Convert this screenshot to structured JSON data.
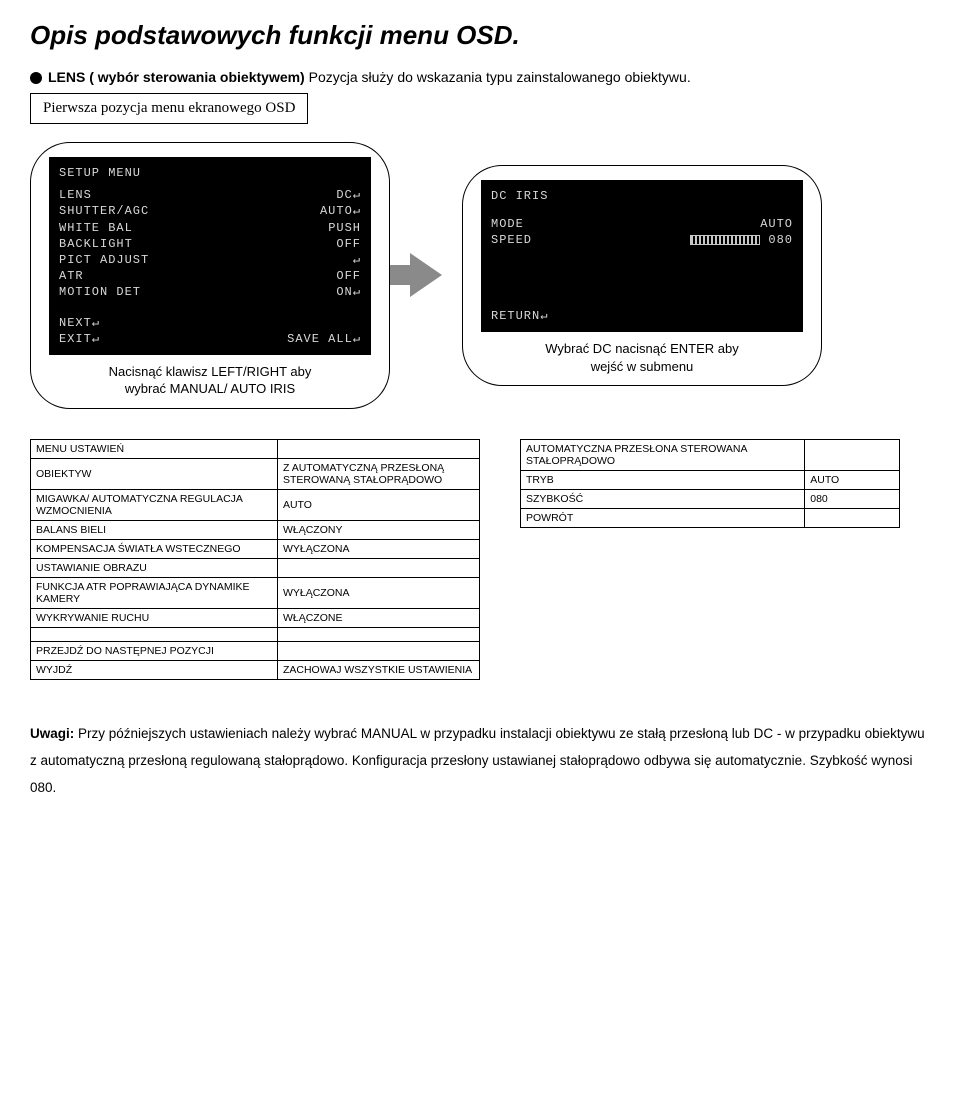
{
  "title": "Opis podstawowych funkcji menu OSD.",
  "bullet": {
    "strong": "LENS ( wybór sterowania obiektywem)",
    "rest": " Pozycja służy do wskazania typu zainstalowanego obiektywu."
  },
  "subtitle_box": "Pierwsza pozycja menu ekranowego OSD",
  "osd_left": {
    "title": "SETUP MENU",
    "rows": [
      [
        "LENS",
        "DC↵"
      ],
      [
        "SHUTTER/AGC",
        "AUTO↵"
      ],
      [
        "WHITE BAL",
        "PUSH"
      ],
      [
        "BACKLIGHT",
        "OFF"
      ],
      [
        "PICT ADJUST",
        "↵"
      ],
      [
        "ATR",
        "OFF"
      ],
      [
        "MOTION DET",
        "ON↵"
      ]
    ],
    "footer": [
      [
        "NEXT↵",
        ""
      ],
      [
        "EXIT↵",
        "SAVE ALL↵"
      ]
    ],
    "caption_l1": "Nacisnąć klawisz LEFT/RIGHT aby",
    "caption_l2": "wybrać MANUAL/ AUTO IRIS"
  },
  "osd_right": {
    "title": "DC IRIS",
    "rows": [
      [
        "MODE",
        "AUTO"
      ],
      [
        "SPEED",
        "__SLIDER__ 080"
      ]
    ],
    "footer": [
      [
        "RETURN↵",
        ""
      ]
    ],
    "caption_l1": "Wybrać DC nacisnąć ENTER aby",
    "caption_l2": "wejść w submenu"
  },
  "table_left": {
    "header": [
      "MENU USTAWIEŃ",
      ""
    ],
    "rows": [
      [
        "OBIEKTYW",
        "Z AUTOMATYCZNĄ PRZESŁONĄ STEROWANĄ STAŁOPRĄDOWO"
      ],
      [
        "MIGAWKA/ AUTOMATYCZNA REGULACJA WZMOCNIENIA",
        "AUTO"
      ],
      [
        "BALANS BIELI",
        "WŁĄCZONY"
      ],
      [
        "KOMPENSACJA ŚWIATŁA WSTECZNEGO",
        "WYŁĄCZONA"
      ],
      [
        "USTAWIANIE OBRAZU",
        ""
      ],
      [
        "FUNKCJA ATR POPRAWIAJĄCA DYNAMIKE KAMERY",
        "WYŁĄCZONA"
      ],
      [
        "WYKRYWANIE RUCHU",
        "WŁĄCZONE"
      ]
    ],
    "footer": [
      [
        "PRZEJDŹ DO NASTĘPNEJ POZYCJI",
        ""
      ],
      [
        "WYJDŹ",
        "ZACHOWAJ WSZYSTKIE USTAWIENIA"
      ]
    ]
  },
  "table_right": {
    "rows": [
      [
        "AUTOMATYCZNA PRZESŁONA STEROWANA STAŁOPRĄDOWO",
        ""
      ],
      [
        "TRYB",
        "AUTO"
      ],
      [
        "SZYBKOŚĆ",
        "080"
      ],
      [
        "POWRÓT",
        ""
      ]
    ]
  },
  "notes_strong": "Uwagi:",
  "notes_body": " Przy późniejszych ustawieniach należy wybrać MANUAL w przypadku  instalacji obiektywu ze stałą przesłoną lub DC - w przypadku obiektywu z automatyczną przesłoną  regulowaną stałoprądowo. Konfiguracja przesłony ustawianej stałoprądowo odbywa się automatycznie. Szybkość wynosi 080."
}
